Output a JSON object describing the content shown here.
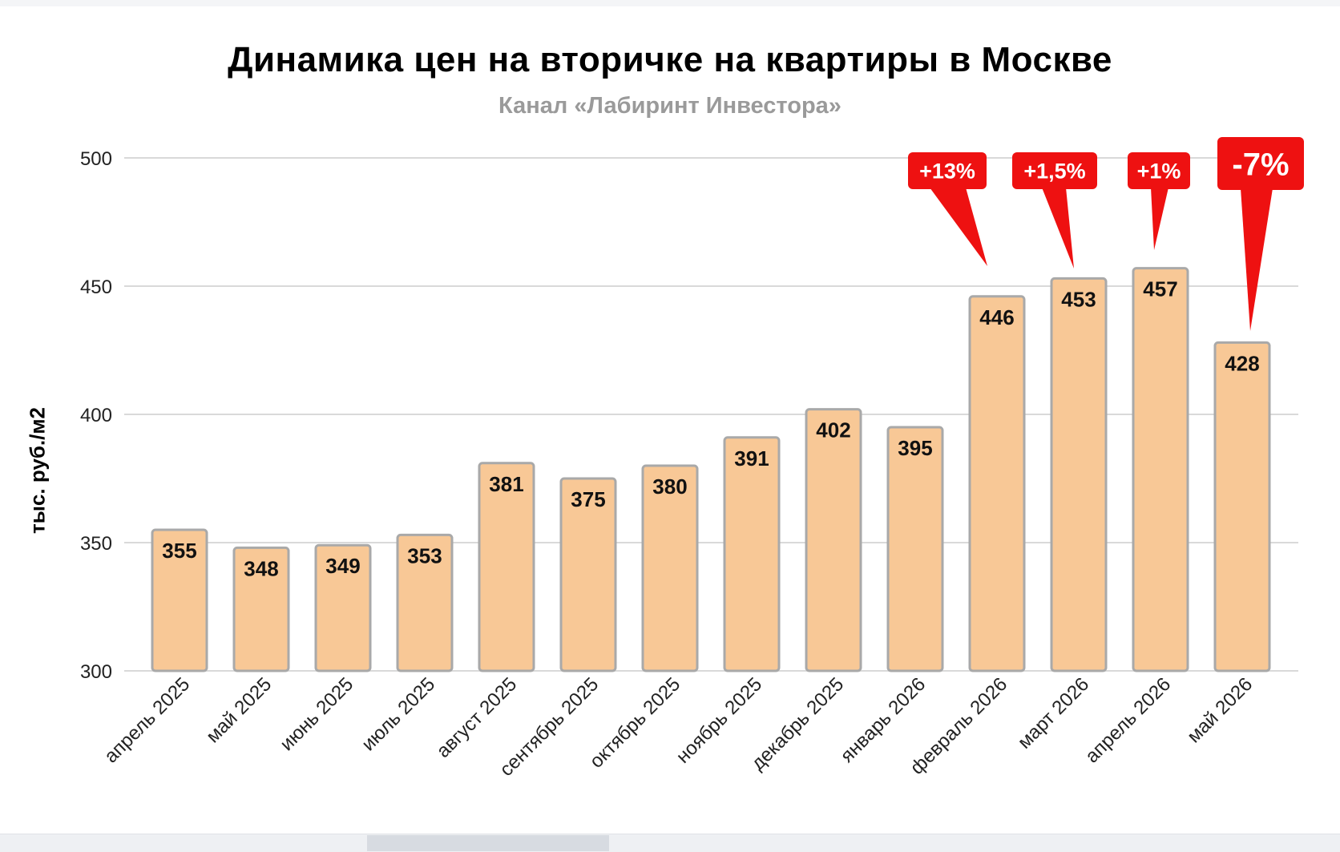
{
  "colors": {
    "bar_fill": "#f8c896",
    "bar_stroke": "#a9a9a9",
    "grid": "#d9d9d9",
    "callout": "#ee1111",
    "title": "#000000",
    "subtitle": "#9a9a9a"
  },
  "chart_data": {
    "type": "bar",
    "title": "Динамика цен на вторичке на квартиры в Москве",
    "subtitle": "Канал «Лабиринт Инвестора»",
    "xlabel": "",
    "ylabel": "тыс. руб./м2",
    "ylim": [
      300,
      500
    ],
    "yticks": [
      300,
      350,
      400,
      450,
      500
    ],
    "grid": true,
    "categories": [
      "апрель 2025",
      "май 2025",
      "июнь 2025",
      "июль 2025",
      "август 2025",
      "сентябрь 2025",
      "октябрь 2025",
      "ноябрь 2025",
      "декабрь 2025",
      "январь 2026",
      "февраль 2026",
      "март 2026",
      "апрель 2026",
      "май 2026"
    ],
    "values": [
      355,
      348,
      349,
      353,
      381,
      375,
      380,
      391,
      402,
      395,
      446,
      453,
      457,
      428
    ],
    "annotations": [
      {
        "category": "февраль 2026",
        "text": "+13%"
      },
      {
        "category": "март 2026",
        "text": "+1,5%"
      },
      {
        "category": "апрель 2026",
        "text": "+1%"
      },
      {
        "category": "май 2026",
        "text": "-7%"
      }
    ]
  }
}
